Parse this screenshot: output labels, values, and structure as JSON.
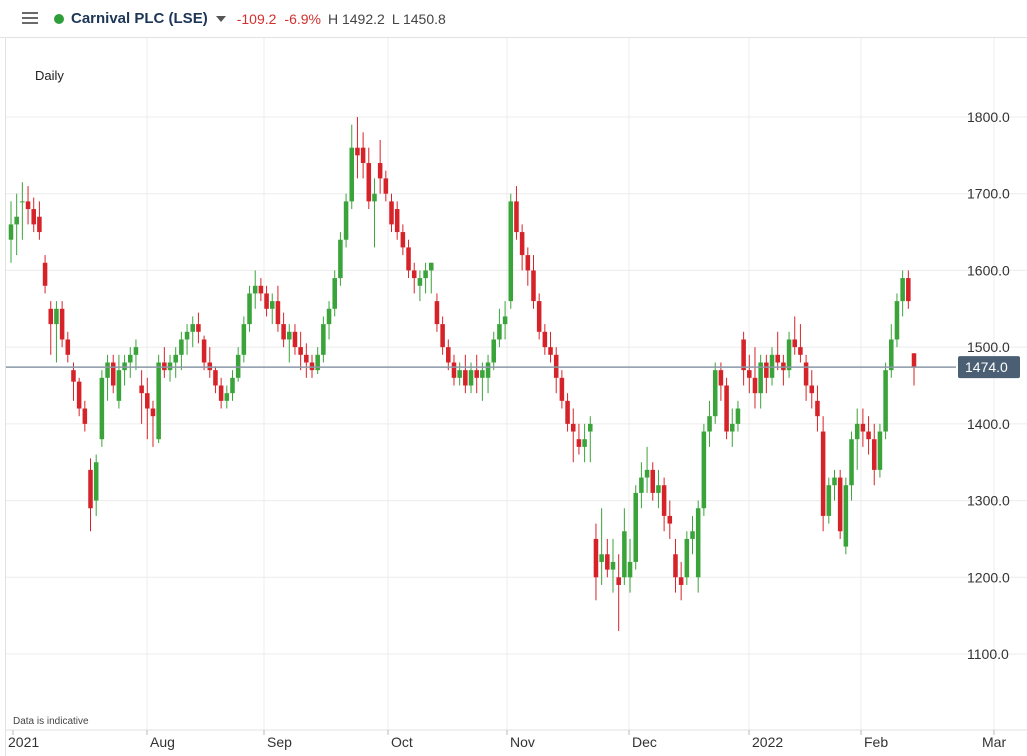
{
  "header": {
    "instrument": "Carnival PLC (LSE)",
    "change": "-109.2",
    "change_pct": "-6.9%",
    "high": "H 1492.2",
    "low": "L 1450.8",
    "status_color": "#2e9e3a"
  },
  "period_label": "Daily",
  "disclaimer": "Data is indicative",
  "last_price_label": "1474.0",
  "colors": {
    "up": "#3aa43a",
    "down": "#d6232a",
    "price_line": "#8a97a6",
    "price_badge": "#4a5f73"
  },
  "chart_data": {
    "type": "candlestick",
    "title": "",
    "ylim": [
      1000,
      1860
    ],
    "y_ticks": [
      "1800.0",
      "1700.0",
      "1600.0",
      "1500.0",
      "1400.0",
      "1300.0",
      "1200.0",
      "1100.0"
    ],
    "x_labels": [
      "2021",
      "Aug",
      "Sep",
      "Oct",
      "Nov",
      "Dec",
      "2022",
      "Feb",
      "Mar"
    ],
    "last_price": 1474.0,
    "candles": [
      {
        "o": 1640,
        "h": 1690,
        "l": 1610,
        "c": 1660
      },
      {
        "o": 1660,
        "h": 1700,
        "l": 1620,
        "c": 1670
      },
      {
        "o": 1690,
        "h": 1715,
        "l": 1640,
        "c": 1690
      },
      {
        "o": 1690,
        "h": 1710,
        "l": 1660,
        "c": 1680
      },
      {
        "o": 1680,
        "h": 1695,
        "l": 1650,
        "c": 1660
      },
      {
        "o": 1670,
        "h": 1690,
        "l": 1640,
        "c": 1650
      },
      {
        "o": 1610,
        "h": 1620,
        "l": 1570,
        "c": 1580
      },
      {
        "o": 1550,
        "h": 1560,
        "l": 1490,
        "c": 1530
      },
      {
        "o": 1530,
        "h": 1560,
        "l": 1480,
        "c": 1550
      },
      {
        "o": 1550,
        "h": 1560,
        "l": 1500,
        "c": 1510
      },
      {
        "o": 1510,
        "h": 1520,
        "l": 1480,
        "c": 1490
      },
      {
        "o": 1470,
        "h": 1480,
        "l": 1430,
        "c": 1455
      },
      {
        "o": 1455,
        "h": 1460,
        "l": 1410,
        "c": 1420
      },
      {
        "o": 1420,
        "h": 1430,
        "l": 1390,
        "c": 1400
      },
      {
        "o": 1340,
        "h": 1355,
        "l": 1260,
        "c": 1290
      },
      {
        "o": 1300,
        "h": 1360,
        "l": 1280,
        "c": 1350
      },
      {
        "o": 1380,
        "h": 1470,
        "l": 1370,
        "c": 1460
      },
      {
        "o": 1460,
        "h": 1490,
        "l": 1430,
        "c": 1480
      },
      {
        "o": 1480,
        "h": 1490,
        "l": 1440,
        "c": 1450
      },
      {
        "o": 1430,
        "h": 1490,
        "l": 1420,
        "c": 1470
      },
      {
        "o": 1470,
        "h": 1490,
        "l": 1450,
        "c": 1480
      },
      {
        "o": 1480,
        "h": 1500,
        "l": 1460,
        "c": 1490
      },
      {
        "o": 1490,
        "h": 1510,
        "l": 1470,
        "c": 1500
      },
      {
        "o": 1450,
        "h": 1470,
        "l": 1400,
        "c": 1440
      },
      {
        "o": 1440,
        "h": 1460,
        "l": 1380,
        "c": 1420
      },
      {
        "o": 1420,
        "h": 1430,
        "l": 1370,
        "c": 1410
      },
      {
        "o": 1380,
        "h": 1490,
        "l": 1375,
        "c": 1480
      },
      {
        "o": 1480,
        "h": 1500,
        "l": 1460,
        "c": 1470
      },
      {
        "o": 1470,
        "h": 1490,
        "l": 1455,
        "c": 1480
      },
      {
        "o": 1480,
        "h": 1500,
        "l": 1460,
        "c": 1490
      },
      {
        "o": 1490,
        "h": 1520,
        "l": 1470,
        "c": 1510
      },
      {
        "o": 1510,
        "h": 1530,
        "l": 1490,
        "c": 1520
      },
      {
        "o": 1520,
        "h": 1540,
        "l": 1500,
        "c": 1530
      },
      {
        "o": 1530,
        "h": 1545,
        "l": 1505,
        "c": 1520
      },
      {
        "o": 1510,
        "h": 1515,
        "l": 1470,
        "c": 1480
      },
      {
        "o": 1480,
        "h": 1500,
        "l": 1460,
        "c": 1470
      },
      {
        "o": 1470,
        "h": 1475,
        "l": 1440,
        "c": 1450
      },
      {
        "o": 1450,
        "h": 1460,
        "l": 1420,
        "c": 1430
      },
      {
        "o": 1430,
        "h": 1450,
        "l": 1420,
        "c": 1440
      },
      {
        "o": 1440,
        "h": 1470,
        "l": 1430,
        "c": 1460
      },
      {
        "o": 1460,
        "h": 1500,
        "l": 1455,
        "c": 1490
      },
      {
        "o": 1490,
        "h": 1540,
        "l": 1480,
        "c": 1530
      },
      {
        "o": 1530,
        "h": 1580,
        "l": 1520,
        "c": 1570
      },
      {
        "o": 1570,
        "h": 1600,
        "l": 1550,
        "c": 1580
      },
      {
        "o": 1580,
        "h": 1590,
        "l": 1560,
        "c": 1570
      },
      {
        "o": 1570,
        "h": 1580,
        "l": 1540,
        "c": 1550
      },
      {
        "o": 1550,
        "h": 1570,
        "l": 1530,
        "c": 1560
      },
      {
        "o": 1560,
        "h": 1580,
        "l": 1520,
        "c": 1530
      },
      {
        "o": 1530,
        "h": 1545,
        "l": 1500,
        "c": 1510
      },
      {
        "o": 1510,
        "h": 1530,
        "l": 1480,
        "c": 1520
      },
      {
        "o": 1520,
        "h": 1530,
        "l": 1490,
        "c": 1500
      },
      {
        "o": 1500,
        "h": 1520,
        "l": 1470,
        "c": 1490
      },
      {
        "o": 1490,
        "h": 1505,
        "l": 1460,
        "c": 1480
      },
      {
        "o": 1480,
        "h": 1490,
        "l": 1460,
        "c": 1470
      },
      {
        "o": 1470,
        "h": 1500,
        "l": 1465,
        "c": 1490
      },
      {
        "o": 1490,
        "h": 1540,
        "l": 1480,
        "c": 1530
      },
      {
        "o": 1530,
        "h": 1560,
        "l": 1510,
        "c": 1550
      },
      {
        "o": 1550,
        "h": 1600,
        "l": 1540,
        "c": 1590
      },
      {
        "o": 1590,
        "h": 1650,
        "l": 1580,
        "c": 1640
      },
      {
        "o": 1640,
        "h": 1700,
        "l": 1630,
        "c": 1690
      },
      {
        "o": 1690,
        "h": 1790,
        "l": 1680,
        "c": 1760
      },
      {
        "o": 1760,
        "h": 1800,
        "l": 1720,
        "c": 1750
      },
      {
        "o": 1760,
        "h": 1780,
        "l": 1720,
        "c": 1740
      },
      {
        "o": 1740,
        "h": 1760,
        "l": 1680,
        "c": 1690
      },
      {
        "o": 1690,
        "h": 1720,
        "l": 1630,
        "c": 1700
      },
      {
        "o": 1740,
        "h": 1770,
        "l": 1700,
        "c": 1720
      },
      {
        "o": 1720,
        "h": 1730,
        "l": 1690,
        "c": 1700
      },
      {
        "o": 1690,
        "h": 1700,
        "l": 1650,
        "c": 1660
      },
      {
        "o": 1680,
        "h": 1690,
        "l": 1640,
        "c": 1650
      },
      {
        "o": 1650,
        "h": 1660,
        "l": 1620,
        "c": 1630
      },
      {
        "o": 1630,
        "h": 1640,
        "l": 1590,
        "c": 1600
      },
      {
        "o": 1600,
        "h": 1610,
        "l": 1570,
        "c": 1590
      },
      {
        "o": 1580,
        "h": 1600,
        "l": 1560,
        "c": 1590
      },
      {
        "o": 1590,
        "h": 1610,
        "l": 1570,
        "c": 1600
      },
      {
        "o": 1600,
        "h": 1610,
        "l": 1570,
        "c": 1610
      },
      {
        "o": 1560,
        "h": 1570,
        "l": 1520,
        "c": 1530
      },
      {
        "o": 1530,
        "h": 1540,
        "l": 1490,
        "c": 1500
      },
      {
        "o": 1500,
        "h": 1510,
        "l": 1470,
        "c": 1480
      },
      {
        "o": 1480,
        "h": 1490,
        "l": 1450,
        "c": 1460
      },
      {
        "o": 1460,
        "h": 1480,
        "l": 1450,
        "c": 1470
      },
      {
        "o": 1470,
        "h": 1490,
        "l": 1440,
        "c": 1450
      },
      {
        "o": 1450,
        "h": 1480,
        "l": 1440,
        "c": 1470
      },
      {
        "o": 1470,
        "h": 1490,
        "l": 1440,
        "c": 1460
      },
      {
        "o": 1460,
        "h": 1480,
        "l": 1430,
        "c": 1470
      },
      {
        "o": 1460,
        "h": 1490,
        "l": 1440,
        "c": 1480
      },
      {
        "o": 1480,
        "h": 1520,
        "l": 1470,
        "c": 1510
      },
      {
        "o": 1510,
        "h": 1550,
        "l": 1500,
        "c": 1530
      },
      {
        "o": 1530,
        "h": 1560,
        "l": 1510,
        "c": 1540
      },
      {
        "o": 1560,
        "h": 1700,
        "l": 1550,
        "c": 1690
      },
      {
        "o": 1690,
        "h": 1710,
        "l": 1640,
        "c": 1650
      },
      {
        "o": 1650,
        "h": 1660,
        "l": 1600,
        "c": 1620
      },
      {
        "o": 1620,
        "h": 1630,
        "l": 1580,
        "c": 1600
      },
      {
        "o": 1600,
        "h": 1620,
        "l": 1550,
        "c": 1560
      },
      {
        "o": 1560,
        "h": 1570,
        "l": 1510,
        "c": 1520
      },
      {
        "o": 1520,
        "h": 1530,
        "l": 1490,
        "c": 1500
      },
      {
        "o": 1500,
        "h": 1520,
        "l": 1480,
        "c": 1490
      },
      {
        "o": 1490,
        "h": 1500,
        "l": 1440,
        "c": 1460
      },
      {
        "o": 1460,
        "h": 1470,
        "l": 1420,
        "c": 1430
      },
      {
        "o": 1430,
        "h": 1440,
        "l": 1390,
        "c": 1400
      },
      {
        "o": 1400,
        "h": 1420,
        "l": 1350,
        "c": 1390
      },
      {
        "o": 1380,
        "h": 1400,
        "l": 1360,
        "c": 1370
      },
      {
        "o": 1370,
        "h": 1400,
        "l": 1350,
        "c": 1380
      },
      {
        "o": 1390,
        "h": 1410,
        "l": 1350,
        "c": 1400
      },
      {
        "o": 1250,
        "h": 1270,
        "l": 1170,
        "c": 1200
      },
      {
        "o": 1220,
        "h": 1290,
        "l": 1190,
        "c": 1230
      },
      {
        "o": 1230,
        "h": 1250,
        "l": 1200,
        "c": 1210
      },
      {
        "o": 1210,
        "h": 1250,
        "l": 1180,
        "c": 1220
      },
      {
        "o": 1200,
        "h": 1230,
        "l": 1130,
        "c": 1190
      },
      {
        "o": 1200,
        "h": 1290,
        "l": 1190,
        "c": 1260
      },
      {
        "o": 1200,
        "h": 1250,
        "l": 1180,
        "c": 1220
      },
      {
        "o": 1220,
        "h": 1320,
        "l": 1210,
        "c": 1310
      },
      {
        "o": 1310,
        "h": 1350,
        "l": 1290,
        "c": 1330
      },
      {
        "o": 1330,
        "h": 1370,
        "l": 1310,
        "c": 1340
      },
      {
        "o": 1340,
        "h": 1350,
        "l": 1300,
        "c": 1310
      },
      {
        "o": 1310,
        "h": 1340,
        "l": 1290,
        "c": 1320
      },
      {
        "o": 1320,
        "h": 1330,
        "l": 1260,
        "c": 1280
      },
      {
        "o": 1280,
        "h": 1300,
        "l": 1250,
        "c": 1270
      },
      {
        "o": 1230,
        "h": 1250,
        "l": 1180,
        "c": 1200
      },
      {
        "o": 1200,
        "h": 1220,
        "l": 1170,
        "c": 1190
      },
      {
        "o": 1200,
        "h": 1260,
        "l": 1190,
        "c": 1250
      },
      {
        "o": 1250,
        "h": 1280,
        "l": 1230,
        "c": 1260
      },
      {
        "o": 1200,
        "h": 1300,
        "l": 1180,
        "c": 1290
      },
      {
        "o": 1290,
        "h": 1400,
        "l": 1280,
        "c": 1390
      },
      {
        "o": 1390,
        "h": 1430,
        "l": 1370,
        "c": 1410
      },
      {
        "o": 1410,
        "h": 1480,
        "l": 1400,
        "c": 1470
      },
      {
        "o": 1470,
        "h": 1480,
        "l": 1430,
        "c": 1450
      },
      {
        "o": 1450,
        "h": 1460,
        "l": 1380,
        "c": 1390
      },
      {
        "o": 1390,
        "h": 1420,
        "l": 1370,
        "c": 1400
      },
      {
        "o": 1400,
        "h": 1430,
        "l": 1390,
        "c": 1420
      },
      {
        "o": 1510,
        "h": 1520,
        "l": 1450,
        "c": 1470
      },
      {
        "o": 1470,
        "h": 1490,
        "l": 1440,
        "c": 1460
      },
      {
        "o": 1460,
        "h": 1500,
        "l": 1420,
        "c": 1440
      },
      {
        "o": 1440,
        "h": 1490,
        "l": 1420,
        "c": 1480
      },
      {
        "o": 1480,
        "h": 1490,
        "l": 1440,
        "c": 1460
      },
      {
        "o": 1460,
        "h": 1500,
        "l": 1450,
        "c": 1490
      },
      {
        "o": 1490,
        "h": 1520,
        "l": 1470,
        "c": 1480
      },
      {
        "o": 1480,
        "h": 1490,
        "l": 1450,
        "c": 1470
      },
      {
        "o": 1470,
        "h": 1520,
        "l": 1460,
        "c": 1510
      },
      {
        "o": 1510,
        "h": 1540,
        "l": 1490,
        "c": 1500
      },
      {
        "o": 1500,
        "h": 1530,
        "l": 1480,
        "c": 1490
      },
      {
        "o": 1480,
        "h": 1490,
        "l": 1430,
        "c": 1450
      },
      {
        "o": 1450,
        "h": 1470,
        "l": 1420,
        "c": 1440
      },
      {
        "o": 1430,
        "h": 1450,
        "l": 1390,
        "c": 1410
      },
      {
        "o": 1390,
        "h": 1410,
        "l": 1260,
        "c": 1280
      },
      {
        "o": 1280,
        "h": 1330,
        "l": 1270,
        "c": 1320
      },
      {
        "o": 1320,
        "h": 1340,
        "l": 1300,
        "c": 1330
      },
      {
        "o": 1330,
        "h": 1340,
        "l": 1250,
        "c": 1260
      },
      {
        "o": 1240,
        "h": 1330,
        "l": 1230,
        "c": 1320
      },
      {
        "o": 1320,
        "h": 1390,
        "l": 1300,
        "c": 1380
      },
      {
        "o": 1380,
        "h": 1420,
        "l": 1340,
        "c": 1400
      },
      {
        "o": 1400,
        "h": 1420,
        "l": 1370,
        "c": 1390
      },
      {
        "o": 1390,
        "h": 1410,
        "l": 1360,
        "c": 1380
      },
      {
        "o": 1380,
        "h": 1400,
        "l": 1320,
        "c": 1340
      },
      {
        "o": 1340,
        "h": 1400,
        "l": 1330,
        "c": 1390
      },
      {
        "o": 1390,
        "h": 1480,
        "l": 1380,
        "c": 1470
      },
      {
        "o": 1470,
        "h": 1530,
        "l": 1460,
        "c": 1510
      },
      {
        "o": 1510,
        "h": 1570,
        "l": 1500,
        "c": 1560
      },
      {
        "o": 1560,
        "h": 1600,
        "l": 1540,
        "c": 1590
      },
      {
        "o": 1590,
        "h": 1600,
        "l": 1550,
        "c": 1560
      },
      {
        "o": 1492,
        "h": 1492,
        "l": 1450,
        "c": 1474
      }
    ]
  }
}
